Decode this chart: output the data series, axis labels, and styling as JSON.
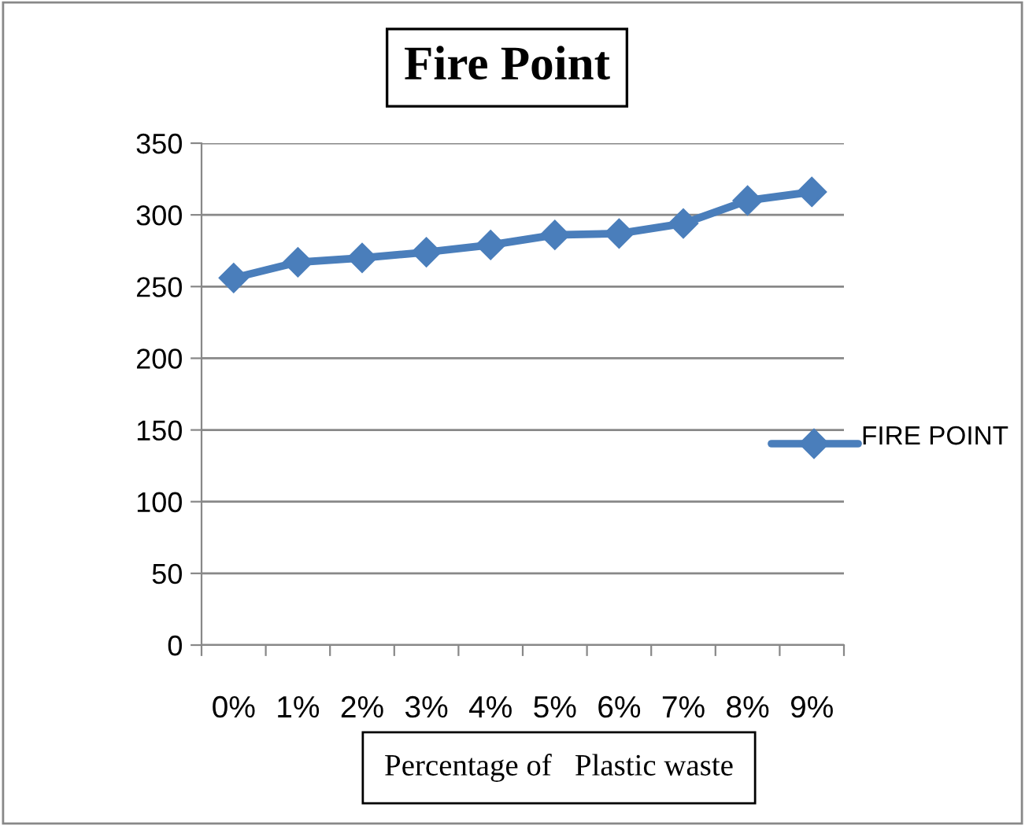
{
  "chart_data": {
    "type": "line",
    "title": "Fire Point",
    "xlabel": "Percentage of   Plastic waste",
    "categories": [
      "0%",
      "1%",
      "2%",
      "3%",
      "4%",
      "5%",
      "6%",
      "7%",
      "8%",
      "9%"
    ],
    "series": [
      {
        "name": "FIRE POINT",
        "color": "#4a7ebb",
        "values": [
          256,
          267,
          270,
          274,
          279,
          286,
          287,
          294,
          310,
          316
        ]
      }
    ],
    "ylim": [
      0,
      350
    ],
    "yticks": [
      0,
      50,
      100,
      150,
      200,
      250,
      300,
      350
    ],
    "grid": "y",
    "legend": "right",
    "marker": "diamond",
    "line_style": "solid"
  }
}
